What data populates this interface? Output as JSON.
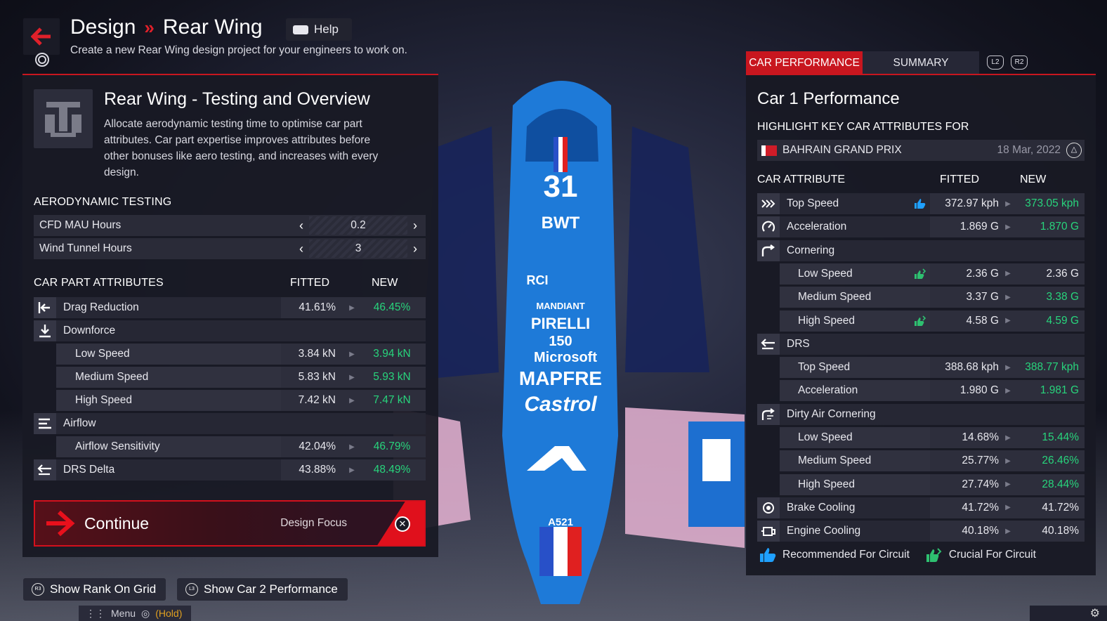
{
  "header": {
    "crumb_parent": "Design",
    "crumb_separator": "»",
    "crumb_current": "Rear Wing",
    "help_label": "Help",
    "subtitle": "Create a new Rear Wing design project for your engineers to work on."
  },
  "left_panel": {
    "title": "Rear Wing - Testing and Overview",
    "description": "Allocate aerodynamic testing time to optimise car part attributes. Car part expertise improves attributes before other bonuses like aero testing, and increases with every design.",
    "aero_section_title": "AERODYNAMIC TESTING",
    "aero_rows": [
      {
        "label": "CFD MAU Hours",
        "value": "0.2"
      },
      {
        "label": "Wind Tunnel Hours",
        "value": "3"
      }
    ],
    "attributes_title": "CAR PART ATTRIBUTES",
    "col_fitted": "FITTED",
    "col_new": "NEW",
    "attributes": [
      {
        "label": "Drag Reduction",
        "fitted": "41.61%",
        "new": "46.45%",
        "icon": "arrow-left-bar-icon"
      },
      {
        "label": "Downforce",
        "icon": "arrow-down-bar-icon"
      },
      {
        "label": "Low Speed",
        "fitted": "3.84 kN",
        "new": "3.94 kN"
      },
      {
        "label": "Medium Speed",
        "fitted": "5.83 kN",
        "new": "5.93 kN"
      },
      {
        "label": "High Speed",
        "fitted": "7.42 kN",
        "new": "7.47 kN"
      },
      {
        "label": "Airflow",
        "icon": "airflow-icon"
      },
      {
        "label": "Airflow Sensitivity",
        "fitted": "42.04%",
        "new": "46.79%"
      },
      {
        "label": "DRS Delta",
        "fitted": "43.88%",
        "new": "48.49%",
        "icon": "drs-icon"
      }
    ],
    "continue_label": "Continue",
    "design_focus_label": "Design Focus",
    "cross_button": "✕"
  },
  "right_panel": {
    "tabs": [
      {
        "label": "CAR PERFORMANCE",
        "active": true
      },
      {
        "label": "SUMMARY",
        "active": false
      }
    ],
    "l2_label": "L2",
    "r2_label": "R2",
    "title": "Car 1 Performance",
    "highlight_label": "HIGHLIGHT KEY CAR ATTRIBUTES FOR",
    "grand_prix": "BAHRAIN GRAND PRIX",
    "date": "18 Mar, 2022",
    "triangle_button": "△",
    "col_attribute": "CAR ATTRIBUTE",
    "col_fitted": "FITTED",
    "col_new": "NEW",
    "attributes": [
      {
        "label": "Top Speed",
        "fitted": "372.97 kph",
        "new": "373.05 kph",
        "new_improved": true,
        "badge": "recommended",
        "icon": "top-speed-icon"
      },
      {
        "label": "Acceleration",
        "fitted": "1.869 G",
        "new": "1.870 G",
        "new_improved": true,
        "icon": "acceleration-icon"
      },
      {
        "label": "Cornering",
        "icon": "cornering-icon"
      },
      {
        "label": "Low Speed",
        "fitted": "2.36 G",
        "new": "2.36 G",
        "new_improved": false,
        "badge": "crucial"
      },
      {
        "label": "Medium Speed",
        "fitted": "3.37 G",
        "new": "3.38 G",
        "new_improved": true
      },
      {
        "label": "High Speed",
        "fitted": "4.58 G",
        "new": "4.59 G",
        "new_improved": true,
        "badge": "crucial"
      },
      {
        "label": "DRS",
        "icon": "drs-icon"
      },
      {
        "label": "Top Speed",
        "fitted": "388.68 kph",
        "new": "388.77 kph",
        "new_improved": true
      },
      {
        "label": "Acceleration",
        "fitted": "1.980 G",
        "new": "1.981 G",
        "new_improved": true
      },
      {
        "label": "Dirty Air Cornering",
        "icon": "dirty-air-icon"
      },
      {
        "label": "Low Speed",
        "fitted": "14.68%",
        "new": "15.44%",
        "new_improved": true
      },
      {
        "label": "Medium Speed",
        "fitted": "25.77%",
        "new": "26.46%",
        "new_improved": true
      },
      {
        "label": "High Speed",
        "fitted": "27.74%",
        "new": "28.44%",
        "new_improved": true
      },
      {
        "label": "Brake Cooling",
        "fitted": "41.72%",
        "new": "41.72%",
        "new_improved": false,
        "icon": "brake-icon"
      },
      {
        "label": "Engine Cooling",
        "fitted": "40.18%",
        "new": "40.18%",
        "new_improved": false,
        "icon": "engine-icon"
      }
    ],
    "legend_recommended": "Recommended For Circuit",
    "legend_crucial": "Crucial For Circuit"
  },
  "footer": {
    "rank_button": "Show Rank On Grid",
    "rank_key": "R3",
    "car2_button": "Show Car 2 Performance",
    "car2_key": "L3",
    "menu_label": "Menu",
    "hold_label": "(Hold)"
  },
  "car_livery": [
    "31",
    "BWT",
    "RCI",
    "MANDIANT",
    "PIRELLI",
    "150",
    "Microsoft",
    "MAPFRE",
    "Castrol",
    "A521"
  ],
  "colors": {
    "accent_red": "#c8161f",
    "improved_green": "#28d47c",
    "car_blue": "#1e7ad8",
    "car_pink": "#f0b8d8"
  }
}
